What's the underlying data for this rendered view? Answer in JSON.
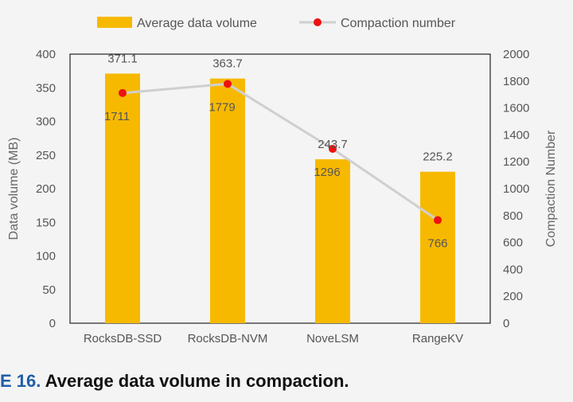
{
  "chart_data": {
    "type": "bar",
    "categories": [
      "RocksDB-SSD",
      "RocksDB-NVM",
      "NoveLSM",
      "RangeKV"
    ],
    "series": [
      {
        "name": "Average data volume",
        "type": "bar",
        "axis": "left",
        "values": [
          371.1,
          363.7,
          243.7,
          225.2
        ],
        "labels": [
          "371.1",
          "363.7",
          "243.7",
          "225.2"
        ]
      },
      {
        "name": "Compaction number",
        "type": "line",
        "axis": "right",
        "values": [
          1711,
          1779,
          1296,
          766
        ],
        "labels": [
          "1711",
          "1779",
          "1296",
          "766"
        ]
      }
    ],
    "ylabel": "Data volume (MB)",
    "y2label": "Compaction Number",
    "ylim": [
      0,
      400
    ],
    "y2lim": [
      0,
      2000
    ],
    "yticks": [
      "0",
      "50",
      "100",
      "150",
      "200",
      "250",
      "300",
      "350",
      "400"
    ],
    "y2ticks": [
      "0",
      "200",
      "400",
      "600",
      "800",
      "1000",
      "1200",
      "1400",
      "1600",
      "1800",
      "2000"
    ],
    "legend": "top",
    "grid": false,
    "colors": {
      "bar": "#f7b900",
      "line": "#cfcfcf",
      "marker": "#ee1111",
      "frame": "#222222"
    }
  },
  "caption": {
    "prefix": "E 16.",
    "text": "Average data volume in compaction."
  }
}
